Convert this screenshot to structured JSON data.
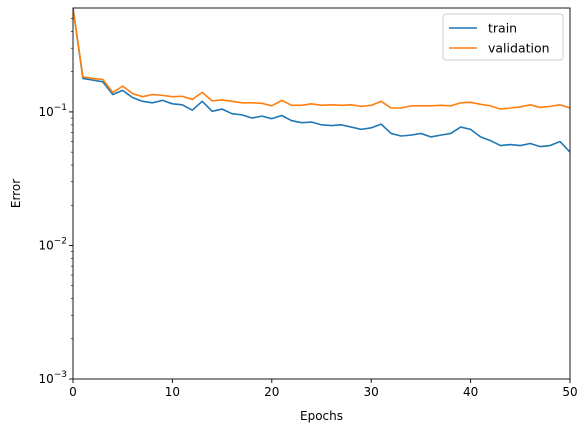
{
  "chart_data": {
    "type": "line",
    "title": "",
    "xlabel": "Epochs",
    "ylabel": "Error",
    "xlim": [
      0,
      50
    ],
    "ylim": [
      0.001,
      0.6
    ],
    "yscale": "log",
    "grid": false,
    "legend_position": "top-right",
    "x_ticks": [
      0,
      10,
      20,
      30,
      40,
      50
    ],
    "x_tick_labels": [
      "0",
      "10",
      "20",
      "30",
      "40",
      "50"
    ],
    "y_ticks": [
      0.001,
      0.01,
      0.1
    ],
    "y_tick_labels": [
      {
        "base": "10",
        "exp": "−3"
      },
      {
        "base": "10",
        "exp": "−2"
      },
      {
        "base": "10",
        "exp": "−1"
      }
    ],
    "x": [
      0,
      1,
      2,
      3,
      4,
      5,
      6,
      7,
      8,
      9,
      10,
      11,
      12,
      13,
      14,
      15,
      16,
      17,
      18,
      19,
      20,
      21,
      22,
      23,
      24,
      25,
      26,
      27,
      28,
      29,
      30,
      31,
      32,
      33,
      34,
      35,
      36,
      37,
      38,
      39,
      40,
      41,
      42,
      43,
      44,
      45,
      46,
      47,
      48,
      49,
      50
    ],
    "series": [
      {
        "name": "train",
        "color": "#1f77b4",
        "values": [
          0.6,
          0.178,
          0.173,
          0.168,
          0.135,
          0.145,
          0.128,
          0.12,
          0.117,
          0.122,
          0.115,
          0.113,
          0.103,
          0.12,
          0.101,
          0.105,
          0.097,
          0.095,
          0.09,
          0.093,
          0.089,
          0.094,
          0.086,
          0.083,
          0.084,
          0.08,
          0.079,
          0.08,
          0.077,
          0.074,
          0.076,
          0.081,
          0.069,
          0.066,
          0.067,
          0.069,
          0.065,
          0.067,
          0.069,
          0.077,
          0.074,
          0.065,
          0.061,
          0.056,
          0.057,
          0.056,
          0.058,
          0.055,
          0.056,
          0.06,
          0.05
        ]
      },
      {
        "name": "validation",
        "color": "#ff7f0e",
        "values": [
          0.6,
          0.183,
          0.178,
          0.175,
          0.14,
          0.156,
          0.137,
          0.13,
          0.135,
          0.133,
          0.13,
          0.131,
          0.124,
          0.14,
          0.121,
          0.123,
          0.12,
          0.117,
          0.117,
          0.116,
          0.111,
          0.122,
          0.112,
          0.112,
          0.115,
          0.112,
          0.113,
          0.112,
          0.113,
          0.11,
          0.112,
          0.12,
          0.107,
          0.107,
          0.111,
          0.111,
          0.111,
          0.112,
          0.111,
          0.117,
          0.118,
          0.114,
          0.111,
          0.105,
          0.107,
          0.109,
          0.113,
          0.108,
          0.11,
          0.113,
          0.107
        ]
      }
    ]
  }
}
